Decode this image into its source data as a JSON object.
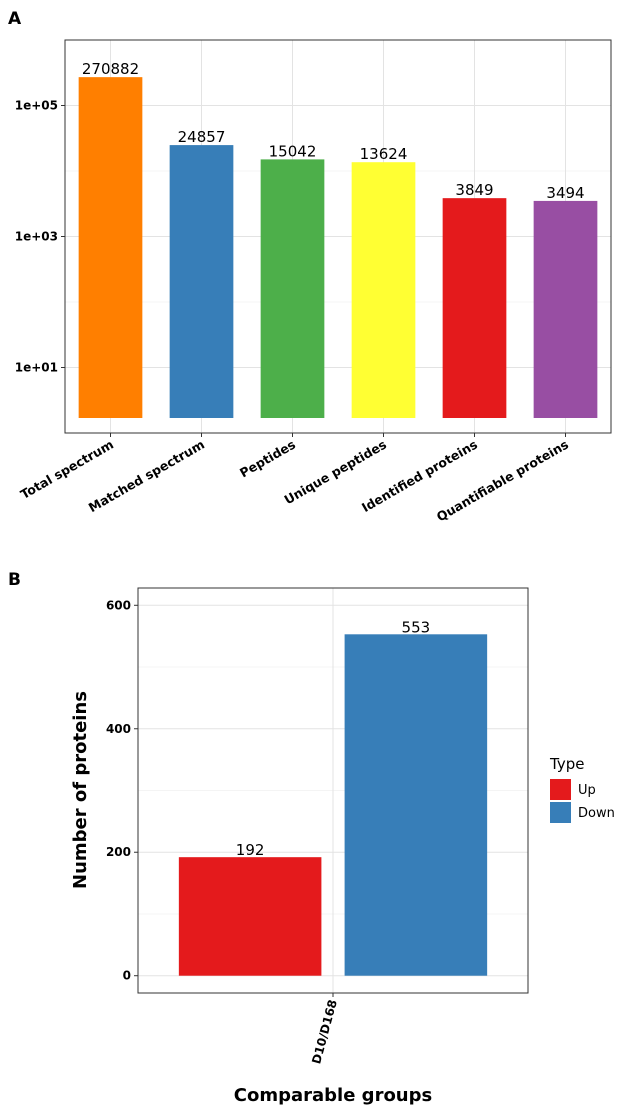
{
  "chart_data": [
    {
      "panel_label": "A",
      "type": "bar",
      "yscale": "log",
      "categories": [
        "Total spectrum",
        "Matched spectrum",
        "Peptides",
        "Unique peptides",
        "Identified proteins",
        "Quantifiable proteins"
      ],
      "values": [
        270882,
        24857,
        15042,
        13624,
        3849,
        3494
      ],
      "value_labels": [
        "270882",
        "24857",
        "15042",
        "13624",
        "3849",
        "3494"
      ],
      "colors": [
        "#FF7F00",
        "#377EB8",
        "#4DAF4A",
        "#FFFF33",
        "#E41A1C",
        "#984EA3"
      ],
      "yticks": [
        {
          "value": 10,
          "label": "1e+01"
        },
        {
          "value": 1000,
          "label": "1e+03"
        },
        {
          "value": 100000,
          "label": "1e+05"
        }
      ],
      "ylim": [
        1,
        1000000
      ],
      "title": "",
      "xlabel": "",
      "ylabel": "",
      "grid": true
    },
    {
      "panel_label": "B",
      "type": "bar",
      "categories": [
        "D10/D168"
      ],
      "series": [
        {
          "name": "Up",
          "values": [
            192
          ],
          "color": "#E41A1C"
        },
        {
          "name": "Down",
          "values": [
            553
          ],
          "color": "#377EB8"
        }
      ],
      "value_labels": [
        "192",
        "553"
      ],
      "yticks": [
        {
          "value": 0,
          "label": "0"
        },
        {
          "value": 200,
          "label": "200"
        },
        {
          "value": 400,
          "label": "400"
        },
        {
          "value": 600,
          "label": "600"
        }
      ],
      "ylim": [
        -28,
        628
      ],
      "xlabel": "Comparable groups",
      "ylabel": "Number of proteins",
      "legend_title": "Type",
      "legend_position": "right",
      "grid": true
    }
  ]
}
